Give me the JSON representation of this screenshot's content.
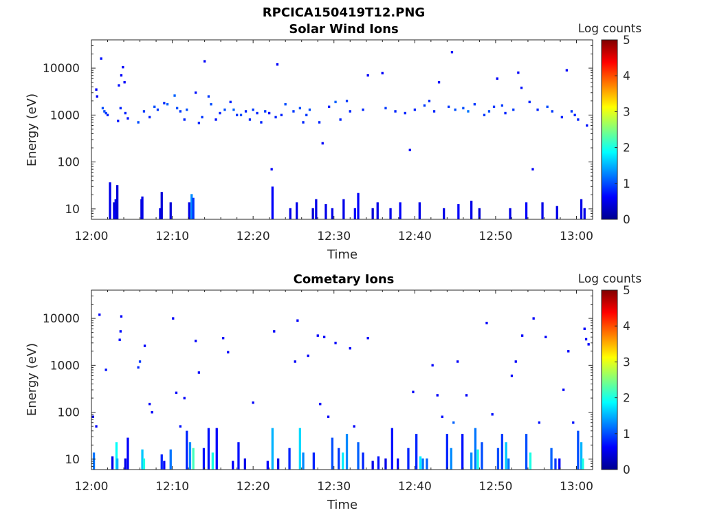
{
  "figure_title": "RPCICA150419T12.PNG",
  "colors": {
    "colormap": [
      "#00008f",
      "#0000ff",
      "#00ffff",
      "#ffff00",
      "#ff0000",
      "#800000"
    ],
    "axis": "#262626"
  },
  "chart_data": [
    {
      "type": "heatmap",
      "title": "Solar Wind Ions",
      "xlabel": "Time",
      "ylabel": "Energy (eV)",
      "x_ticks": [
        "12:00",
        "12:10",
        "12:20",
        "12:30",
        "12:40",
        "12:50",
        "13:00"
      ],
      "x_tick_minutes": [
        0,
        10,
        20,
        30,
        40,
        50,
        60
      ],
      "xlim_minutes": [
        0,
        62
      ],
      "y_ticks": [
        "10",
        "100",
        "1000",
        "10000"
      ],
      "y_tick_values": [
        10,
        100,
        1000,
        10000
      ],
      "ylim": [
        6,
        40000
      ],
      "y_scale": "log",
      "colorbar": {
        "label": "Log counts",
        "ticks": [
          "0",
          "1",
          "2",
          "3",
          "4",
          "5"
        ],
        "range": [
          0,
          5
        ]
      },
      "grid": false,
      "cells": [
        [
          0.6,
          3500,
          0.6
        ],
        [
          0.7,
          2500,
          0.6
        ],
        [
          1.2,
          16000,
          0.7
        ],
        [
          1.4,
          1400,
          1.0
        ],
        [
          1.6,
          1200,
          1.0
        ],
        [
          1.8,
          1100,
          0.9
        ],
        [
          2.0,
          1000,
          0.8
        ],
        [
          2.3,
          32,
          0.5
        ],
        [
          2.8,
          12,
          0.4
        ],
        [
          2.9,
          8,
          0.6
        ],
        [
          3.0,
          14,
          0.5
        ],
        [
          3.2,
          28,
          0.4
        ],
        [
          3.3,
          750,
          0.7
        ],
        [
          3.4,
          4300,
          0.7
        ],
        [
          3.6,
          1400,
          0.8
        ],
        [
          3.7,
          7000,
          0.6
        ],
        [
          3.9,
          10500,
          0.6
        ],
        [
          4.1,
          5000,
          0.6
        ],
        [
          4.2,
          1100,
          0.8
        ],
        [
          4.5,
          850,
          0.7
        ],
        [
          5.8,
          700,
          1.0
        ],
        [
          6.2,
          14,
          0.4
        ],
        [
          6.3,
          16,
          0.5
        ],
        [
          6.5,
          1200,
          0.9
        ],
        [
          7.2,
          900,
          0.8
        ],
        [
          7.8,
          1500,
          1.0
        ],
        [
          8.2,
          1300,
          0.9
        ],
        [
          8.5,
          9,
          0.5
        ],
        [
          8.7,
          20,
          0.4
        ],
        [
          9.0,
          1800,
          0.8
        ],
        [
          9.4,
          1700,
          1.1
        ],
        [
          9.8,
          12,
          0.4
        ],
        [
          10.3,
          2600,
          1.1
        ],
        [
          10.6,
          1400,
          1.0
        ],
        [
          11.0,
          1200,
          0.9
        ],
        [
          11.5,
          800,
          0.8
        ],
        [
          11.8,
          1300,
          1.0
        ],
        [
          12.1,
          12,
          0.5
        ],
        [
          12.4,
          18,
          1.3
        ],
        [
          12.6,
          15,
          0.9
        ],
        [
          12.9,
          3000,
          0.7
        ],
        [
          13.3,
          680,
          0.8
        ],
        [
          13.7,
          900,
          0.9
        ],
        [
          14.0,
          14000,
          0.6
        ],
        [
          14.5,
          2500,
          0.9
        ],
        [
          14.8,
          1700,
          1.0
        ],
        [
          15.4,
          800,
          0.7
        ],
        [
          15.9,
          1100,
          0.8
        ],
        [
          16.5,
          1300,
          1.0
        ],
        [
          17.2,
          1900,
          0.8
        ],
        [
          17.6,
          1300,
          1.1
        ],
        [
          18.0,
          1000,
          0.9
        ],
        [
          18.5,
          1000,
          1.0
        ],
        [
          19.1,
          1200,
          0.8
        ],
        [
          19.6,
          800,
          0.8
        ],
        [
          20.0,
          1300,
          0.9
        ],
        [
          20.5,
          1100,
          0.8
        ],
        [
          21.0,
          700,
          0.8
        ],
        [
          21.5,
          1200,
          0.9
        ],
        [
          22.0,
          1100,
          0.7
        ],
        [
          22.3,
          70,
          0.6
        ],
        [
          22.4,
          26,
          0.6
        ],
        [
          22.8,
          900,
          0.8
        ],
        [
          23.0,
          12000,
          0.6
        ],
        [
          23.5,
          1000,
          0.8
        ],
        [
          24.0,
          1700,
          1.0
        ],
        [
          24.6,
          9,
          0.5
        ],
        [
          25.0,
          1200,
          0.9
        ],
        [
          25.4,
          12,
          0.5
        ],
        [
          25.8,
          1400,
          1.0
        ],
        [
          26.2,
          700,
          0.8
        ],
        [
          26.6,
          1000,
          0.9
        ],
        [
          27.0,
          1300,
          1.0
        ],
        [
          27.4,
          9,
          0.4
        ],
        [
          27.8,
          14,
          0.5
        ],
        [
          28.2,
          700,
          0.8
        ],
        [
          28.6,
          250,
          0.6
        ],
        [
          29.0,
          11,
          0.5
        ],
        [
          29.4,
          1500,
          0.8
        ],
        [
          29.8,
          9,
          0.5
        ],
        [
          30.2,
          1900,
          1.1
        ],
        [
          30.8,
          800,
          0.8
        ],
        [
          31.2,
          14,
          0.5
        ],
        [
          31.6,
          2000,
          0.9
        ],
        [
          32.0,
          1200,
          0.8
        ],
        [
          32.6,
          9,
          0.6
        ],
        [
          33.0,
          19,
          0.6
        ],
        [
          33.6,
          1300,
          0.8
        ],
        [
          34.2,
          7000,
          0.6
        ],
        [
          34.8,
          9,
          0.4
        ],
        [
          35.4,
          12,
          0.5
        ],
        [
          36.0,
          7800,
          0.6
        ],
        [
          36.4,
          1400,
          0.9
        ],
        [
          37.0,
          9,
          0.5
        ],
        [
          37.6,
          1200,
          0.8
        ],
        [
          38.2,
          12,
          0.6
        ],
        [
          38.8,
          1100,
          0.8
        ],
        [
          39.4,
          180,
          0.6
        ],
        [
          40.0,
          1300,
          0.8
        ],
        [
          40.6,
          12,
          0.5
        ],
        [
          41.2,
          1600,
          0.9
        ],
        [
          41.8,
          2000,
          0.8
        ],
        [
          42.4,
          1200,
          0.8
        ],
        [
          43.0,
          5000,
          0.6
        ],
        [
          43.6,
          9,
          0.5
        ],
        [
          44.2,
          1500,
          0.9
        ],
        [
          44.6,
          22000,
          0.6
        ],
        [
          45.0,
          1300,
          1.0
        ],
        [
          45.4,
          11,
          0.6
        ],
        [
          46.0,
          1400,
          1.0
        ],
        [
          46.6,
          1200,
          1.2
        ],
        [
          47.0,
          13,
          0.5
        ],
        [
          47.4,
          1700,
          0.9
        ],
        [
          48.0,
          9,
          0.4
        ],
        [
          48.6,
          1000,
          0.9
        ],
        [
          49.2,
          1200,
          1.0
        ],
        [
          49.8,
          1500,
          0.9
        ],
        [
          50.2,
          6000,
          0.6
        ],
        [
          50.8,
          1600,
          0.9
        ],
        [
          51.2,
          1100,
          0.8
        ],
        [
          51.8,
          9,
          0.5
        ],
        [
          52.2,
          1300,
          0.9
        ],
        [
          52.8,
          8000,
          0.6
        ],
        [
          53.2,
          3800,
          0.7
        ],
        [
          53.8,
          12,
          0.6
        ],
        [
          54.2,
          1900,
          0.8
        ],
        [
          54.6,
          70,
          0.6
        ],
        [
          55.2,
          1300,
          0.8
        ],
        [
          55.8,
          12,
          0.5
        ],
        [
          56.4,
          1500,
          1.0
        ],
        [
          57.0,
          1200,
          0.9
        ],
        [
          57.6,
          10,
          0.5
        ],
        [
          58.2,
          900,
          0.8
        ],
        [
          58.8,
          9000,
          0.6
        ],
        [
          59.4,
          1200,
          0.9
        ],
        [
          59.8,
          1000,
          0.8
        ],
        [
          60.2,
          800,
          0.8
        ],
        [
          60.6,
          14,
          0.5
        ],
        [
          61.0,
          9,
          0.5
        ],
        [
          61.3,
          600,
          0.7
        ]
      ]
    },
    {
      "type": "heatmap",
      "title": "Cometary Ions",
      "xlabel": "Time",
      "ylabel": "Energy (eV)",
      "x_ticks": [
        "12:00",
        "12:10",
        "12:20",
        "12:30",
        "12:40",
        "12:50",
        "13:00"
      ],
      "x_tick_minutes": [
        0,
        10,
        20,
        30,
        40,
        50,
        60
      ],
      "xlim_minutes": [
        0,
        62
      ],
      "y_ticks": [
        "10",
        "100",
        "1000",
        "10000"
      ],
      "y_tick_values": [
        10,
        100,
        1000,
        10000
      ],
      "ylim": [
        6,
        40000
      ],
      "y_scale": "log",
      "colorbar": {
        "label": "Log counts",
        "ticks": [
          "0",
          "1",
          "2",
          "3",
          "4",
          "5"
        ],
        "range": [
          0,
          5
        ]
      },
      "grid": false,
      "cells": [
        [
          0.2,
          80,
          0.6
        ],
        [
          0.3,
          12,
          1.2
        ],
        [
          0.6,
          50,
          0.6
        ],
        [
          1.0,
          12000,
          0.6
        ],
        [
          1.8,
          800,
          0.7
        ],
        [
          2.6,
          10,
          0.5
        ],
        [
          3.1,
          20,
          1.9
        ],
        [
          3.2,
          9,
          1.5
        ],
        [
          3.5,
          3500,
          0.7
        ],
        [
          3.6,
          5300,
          0.7
        ],
        [
          3.7,
          11000,
          0.6
        ],
        [
          4.2,
          9,
          0.5
        ],
        [
          4.5,
          25,
          0.6
        ],
        [
          5.8,
          900,
          0.8
        ],
        [
          6.0,
          1200,
          0.9
        ],
        [
          6.3,
          14,
          1.6
        ],
        [
          6.5,
          9,
          2.0
        ],
        [
          6.6,
          2600,
          0.6
        ],
        [
          7.2,
          150,
          0.6
        ],
        [
          7.5,
          100,
          0.6
        ],
        [
          8.7,
          11,
          0.8
        ],
        [
          9.0,
          8,
          0.6
        ],
        [
          9.8,
          14,
          1.2
        ],
        [
          10.1,
          10000,
          0.6
        ],
        [
          10.5,
          260,
          0.6
        ],
        [
          11.0,
          50,
          0.7
        ],
        [
          11.5,
          200,
          0.6
        ],
        [
          11.8,
          35,
          0.8
        ],
        [
          12.2,
          20,
          1.3
        ],
        [
          12.6,
          15,
          2.2
        ],
        [
          12.9,
          3300,
          0.6
        ],
        [
          13.3,
          700,
          0.6
        ],
        [
          13.9,
          15,
          0.7
        ],
        [
          14.5,
          40,
          0.7
        ],
        [
          15.0,
          12,
          2.0
        ],
        [
          15.5,
          40,
          0.6
        ],
        [
          16.3,
          3800,
          0.6
        ],
        [
          16.9,
          1900,
          0.6
        ],
        [
          17.5,
          8,
          0.6
        ],
        [
          18.2,
          20,
          0.7
        ],
        [
          19.0,
          9,
          0.5
        ],
        [
          20.0,
          160,
          0.6
        ],
        [
          21.8,
          8,
          0.6
        ],
        [
          22.4,
          40,
          1.5
        ],
        [
          22.6,
          5300,
          0.6
        ],
        [
          23.1,
          9,
          0.5
        ],
        [
          24.5,
          15,
          0.8
        ],
        [
          25.2,
          1200,
          0.6
        ],
        [
          25.5,
          9000,
          0.6
        ],
        [
          25.8,
          40,
          1.7
        ],
        [
          26.2,
          12,
          1.3
        ],
        [
          26.8,
          1600,
          0.6
        ],
        [
          27.5,
          12,
          0.8
        ],
        [
          28.0,
          4300,
          0.6
        ],
        [
          28.3,
          150,
          0.6
        ],
        [
          28.8,
          4000,
          0.6
        ],
        [
          29.3,
          80,
          0.6
        ],
        [
          29.8,
          25,
          1.0
        ],
        [
          30.2,
          3000,
          0.6
        ],
        [
          30.6,
          15,
          0.9
        ],
        [
          31.1,
          12,
          1.8
        ],
        [
          31.6,
          30,
          1.3
        ],
        [
          32.0,
          2300,
          0.6
        ],
        [
          32.5,
          50,
          0.6
        ],
        [
          33.0,
          20,
          1.1
        ],
        [
          33.6,
          12,
          0.8
        ],
        [
          34.2,
          3800,
          0.6
        ],
        [
          34.8,
          8,
          0.5
        ],
        [
          35.5,
          10,
          0.7
        ],
        [
          36.4,
          9,
          0.5
        ],
        [
          37.2,
          40,
          0.7
        ],
        [
          37.9,
          9,
          0.6
        ],
        [
          39.2,
          15,
          0.8
        ],
        [
          39.8,
          270,
          0.6
        ],
        [
          40.2,
          30,
          0.8
        ],
        [
          40.7,
          10,
          1.8
        ],
        [
          41.0,
          9,
          1.2
        ],
        [
          41.5,
          9,
          1.1
        ],
        [
          42.2,
          1000,
          0.6
        ],
        [
          42.8,
          230,
          0.6
        ],
        [
          43.4,
          80,
          0.7
        ],
        [
          44.0,
          30,
          0.8
        ],
        [
          44.5,
          15,
          1.3
        ],
        [
          44.8,
          60,
          1.1
        ],
        [
          45.3,
          1200,
          0.6
        ],
        [
          45.9,
          30,
          0.7
        ],
        [
          46.4,
          230,
          0.6
        ],
        [
          47.0,
          12,
          1.3
        ],
        [
          47.5,
          40,
          1.2
        ],
        [
          47.8,
          14,
          2.0
        ],
        [
          48.3,
          20,
          1.0
        ],
        [
          48.9,
          8000,
          0.6
        ],
        [
          49.6,
          90,
          0.7
        ],
        [
          50.3,
          15,
          1.0
        ],
        [
          50.8,
          30,
          0.9
        ],
        [
          51.3,
          20,
          1.6
        ],
        [
          51.6,
          9,
          1.2
        ],
        [
          52.0,
          600,
          0.6
        ],
        [
          52.5,
          1200,
          0.6
        ],
        [
          53.3,
          4300,
          0.6
        ],
        [
          53.8,
          30,
          1.0
        ],
        [
          54.3,
          12,
          2.0
        ],
        [
          54.7,
          10000,
          0.6
        ],
        [
          55.4,
          60,
          0.7
        ],
        [
          56.2,
          4000,
          0.6
        ],
        [
          56.9,
          15,
          1.1
        ],
        [
          57.4,
          9,
          0.9
        ],
        [
          57.9,
          9,
          0.6
        ],
        [
          58.4,
          300,
          0.6
        ],
        [
          59.0,
          2000,
          0.6
        ],
        [
          59.6,
          60,
          0.7
        ],
        [
          60.2,
          35,
          1.0
        ],
        [
          60.6,
          20,
          1.5
        ],
        [
          60.8,
          9,
          2.0
        ],
        [
          61.0,
          6000,
          0.6
        ],
        [
          61.2,
          3600,
          0.6
        ],
        [
          61.5,
          2800,
          0.6
        ]
      ]
    }
  ]
}
